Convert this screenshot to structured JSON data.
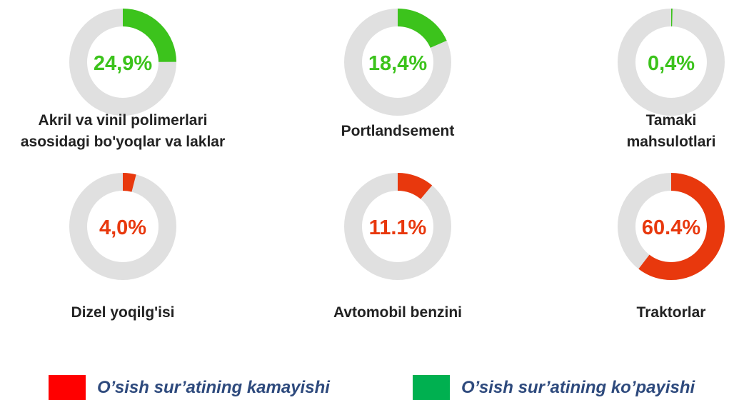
{
  "chart_data": [
    {
      "type": "donut",
      "title": "Akril va vinil polimerlari asosidagi bo'yoqlar va laklar",
      "values": [
        24.9
      ],
      "value_labels": [
        "24,9%"
      ],
      "color": "#3cc31c"
    },
    {
      "type": "donut",
      "title": "Portlandsement",
      "values": [
        18.4
      ],
      "value_labels": [
        "18,4%"
      ],
      "color": "#3cc31c"
    },
    {
      "type": "donut",
      "title": "Tamaki mahsulotlari",
      "values": [
        0.4
      ],
      "value_labels": [
        "0,4%"
      ],
      "color": "#3cc31c"
    },
    {
      "type": "donut",
      "title": "Dizel yoqilg'isi",
      "values": [
        4.0
      ],
      "value_labels": [
        "4,0%"
      ],
      "color": "#e8380d"
    },
    {
      "type": "donut",
      "title": "Avtomobil benzini",
      "values": [
        11.1
      ],
      "value_labels": [
        "11.1%"
      ],
      "color": "#e8380d"
    },
    {
      "type": "donut",
      "title": "Traktorlar",
      "values": [
        60.4
      ],
      "value_labels": [
        "60.4%"
      ],
      "color": "#e8380d"
    }
  ],
  "legend": [
    {
      "name": "O’sish sur’atining kamayishi",
      "color": "#ff0000"
    },
    {
      "name": "O’sish sur’atining ko’payishi",
      "color": "#00b050"
    }
  ]
}
